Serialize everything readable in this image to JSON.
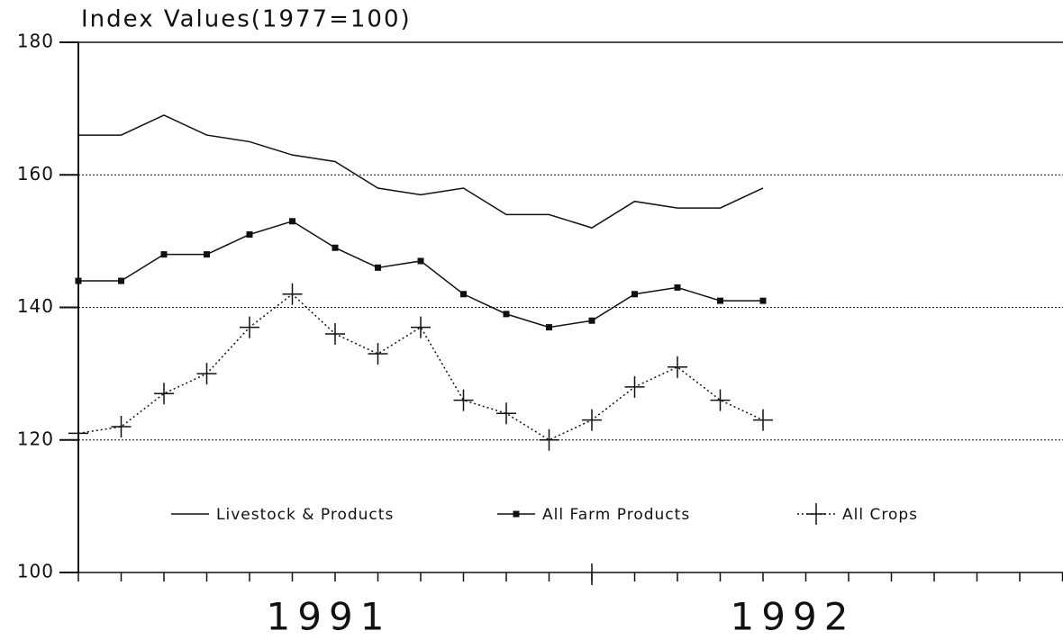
{
  "chart_data": {
    "type": "line",
    "title": "Index Values(1977=100)",
    "x_labels": [
      "1991",
      "1992"
    ],
    "ylim": [
      100,
      180
    ],
    "yticks": [
      100,
      120,
      140,
      160,
      180
    ],
    "grid": true,
    "series": [
      {
        "name": "Livestock & Products",
        "color": "#111111",
        "line_style": "solid",
        "marker": "none",
        "values": [
          166,
          166,
          169,
          166,
          165,
          163,
          162,
          158,
          157,
          158,
          154,
          154,
          152,
          156,
          155,
          155,
          158
        ]
      },
      {
        "name": "All Farm Products",
        "color": "#111111",
        "line_style": "solid",
        "marker": "square",
        "values": [
          144,
          144,
          148,
          148,
          151,
          153,
          149,
          146,
          147,
          142,
          139,
          137,
          138,
          142,
          143,
          141,
          141
        ]
      },
      {
        "name": "All Crops",
        "color": "#111111",
        "line_style": "dotted",
        "marker": "plus",
        "values": [
          121,
          122,
          127,
          130,
          137,
          142,
          136,
          133,
          137,
          126,
          124,
          120,
          123,
          128,
          131,
          126,
          123
        ]
      }
    ]
  }
}
